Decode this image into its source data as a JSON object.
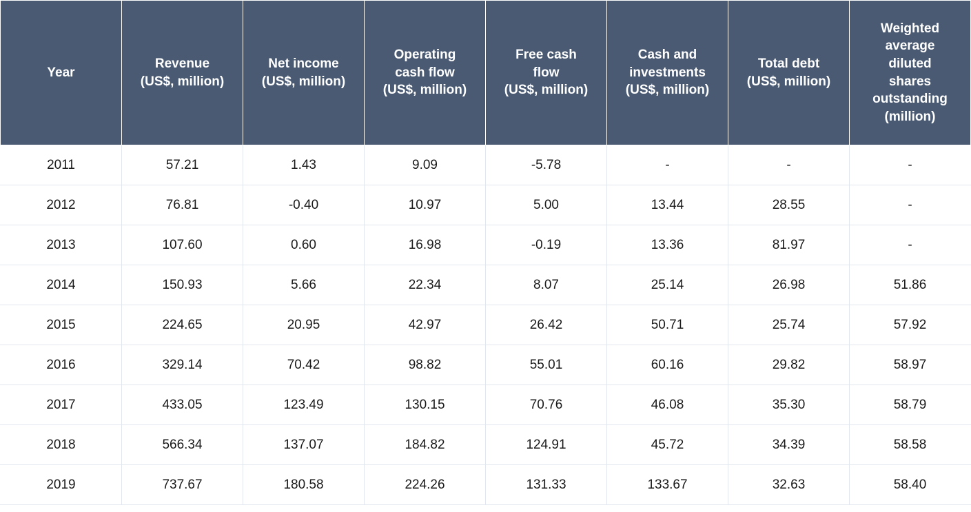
{
  "table": {
    "type": "table",
    "header_bg": "#4a5a73",
    "header_fg": "#ffffff",
    "cell_bg": "#ffffff",
    "cell_fg": "#1a1a1a",
    "border_color": "#e2e6ee",
    "font_family": "Arial",
    "header_fontsize_pt": 14,
    "cell_fontsize_pt": 14,
    "columns": [
      {
        "key": "year",
        "lines": [
          "Year"
        ]
      },
      {
        "key": "rev",
        "lines": [
          "Revenue",
          "(US$, million)"
        ]
      },
      {
        "key": "ni",
        "lines": [
          "Net income",
          "(US$, million)"
        ]
      },
      {
        "key": "ocf",
        "lines": [
          "Operating",
          "cash flow",
          "(US$, million)"
        ]
      },
      {
        "key": "fcf",
        "lines": [
          "Free cash",
          "flow",
          "(US$, million)"
        ]
      },
      {
        "key": "cash",
        "lines": [
          "Cash and",
          "investments",
          "(US$, million)"
        ]
      },
      {
        "key": "debt",
        "lines": [
          "Total debt",
          "(US$, million)"
        ]
      },
      {
        "key": "shares",
        "lines": [
          "Weighted",
          "average",
          "diluted",
          "shares",
          "outstanding",
          "(million)"
        ]
      }
    ],
    "rows": [
      [
        "2011",
        "57.21",
        "1.43",
        "9.09",
        "-5.78",
        "-",
        "-",
        "-"
      ],
      [
        "2012",
        "76.81",
        "-0.40",
        "10.97",
        "5.00",
        "13.44",
        "28.55",
        "-"
      ],
      [
        "2013",
        "107.60",
        "0.60",
        "16.98",
        "-0.19",
        "13.36",
        "81.97",
        "-"
      ],
      [
        "2014",
        "150.93",
        "5.66",
        "22.34",
        "8.07",
        "25.14",
        "26.98",
        "51.86"
      ],
      [
        "2015",
        "224.65",
        "20.95",
        "42.97",
        "26.42",
        "50.71",
        "25.74",
        "57.92"
      ],
      [
        "2016",
        "329.14",
        "70.42",
        "98.82",
        "55.01",
        "60.16",
        "29.82",
        "58.97"
      ],
      [
        "2017",
        "433.05",
        "123.49",
        "130.15",
        "70.76",
        "46.08",
        "35.30",
        "58.79"
      ],
      [
        "2018",
        "566.34",
        "137.07",
        "184.82",
        "124.91",
        "45.72",
        "34.39",
        "58.58"
      ],
      [
        "2019",
        "737.67",
        "180.58",
        "224.26",
        "131.33",
        "133.67",
        "32.63",
        "58.40"
      ]
    ]
  }
}
